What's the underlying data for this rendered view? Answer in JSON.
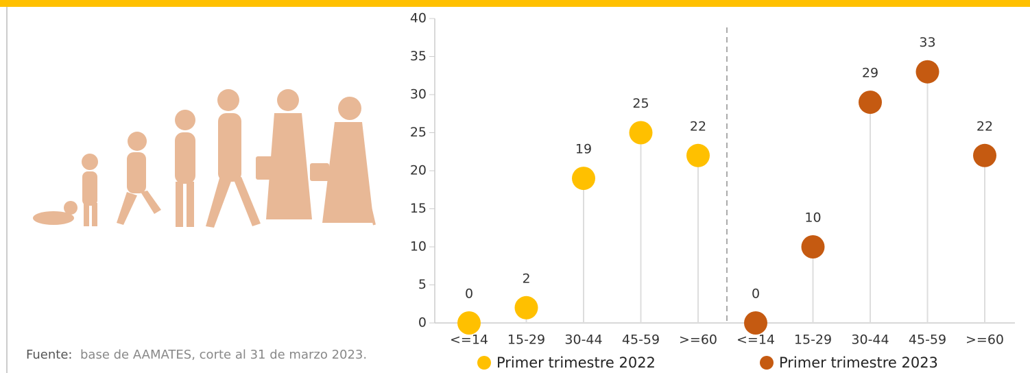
{
  "chart_data": {
    "type": "lollipop",
    "categories": [
      "<=14",
      "15-29",
      "30-44",
      "45-59",
      ">=60"
    ],
    "series": [
      {
        "name": "Primer trimestre 2022",
        "color": "#FFC000",
        "values": [
          0,
          2,
          19,
          25,
          22
        ]
      },
      {
        "name": "Primer trimestre 2023",
        "color": "#C55A11",
        "values": [
          0,
          10,
          29,
          33,
          22
        ]
      }
    ],
    "ylim": [
      0,
      40
    ],
    "yticks": [
      0,
      5,
      10,
      15,
      20,
      25,
      30,
      35,
      40
    ],
    "source_label": "Fuente:",
    "source_text": "base de AAMATES, corte al 31 de marzo 2023."
  }
}
